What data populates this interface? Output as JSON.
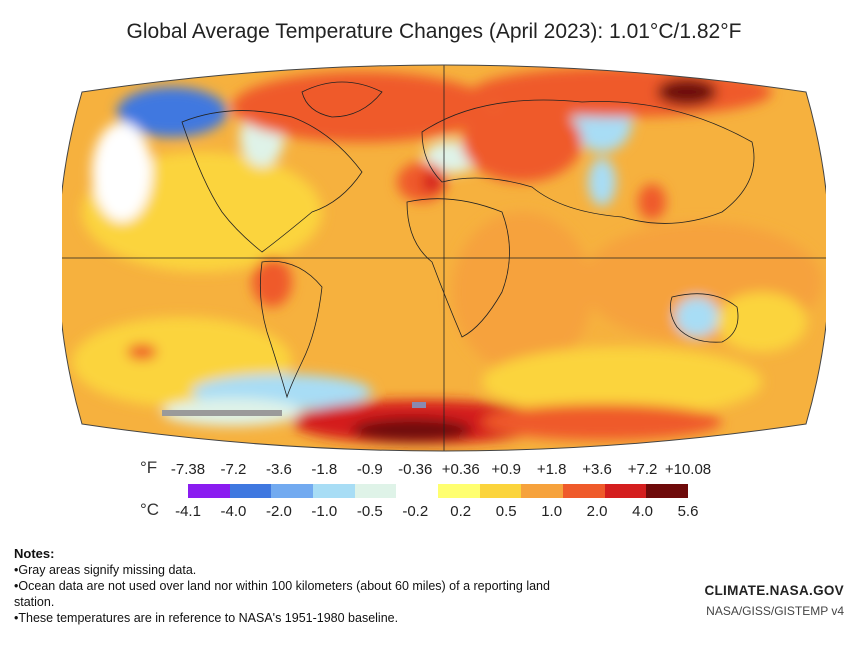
{
  "title": "Global Average Temperature Changes (April 2023): 1.01°C/1.82°F",
  "legend": {
    "f_unit": "°F",
    "c_unit": "°C",
    "f_ticks": [
      "-7.38",
      "-7.2",
      "-3.6",
      "-1.8",
      "-0.9",
      "-0.36",
      "+0.36",
      "+0.9",
      "+1.8",
      "+3.6",
      "+7.2",
      "+10.08"
    ],
    "c_ticks": [
      "-4.1",
      "-4.0",
      "-2.0",
      "-1.0",
      "-0.5",
      "-0.2",
      "0.2",
      "0.5",
      "1.0",
      "2.0",
      "4.0",
      "5.6"
    ],
    "colors": [
      "#8a1cf0",
      "#3f78e0",
      "#72aaf0",
      "#a8ddf5",
      "#dff3e8",
      "#ffffff",
      "#ffff70",
      "#fbd43c",
      "#f6a23c",
      "#ef5a2a",
      "#d41e1e",
      "#6e0a0a"
    ]
  },
  "notes": {
    "heading": "Notes:",
    "items": [
      "Gray areas signify missing data.",
      "Ocean data are not used over land nor within 100 kilometers (about 60 miles) of a reporting land station.",
      "These temperatures are in reference to NASA's 1951-1980 baseline."
    ]
  },
  "credit": {
    "main": "CLIMATE.NASA.GOV",
    "sub": "NASA/GISS/GISTEMP v4"
  }
}
